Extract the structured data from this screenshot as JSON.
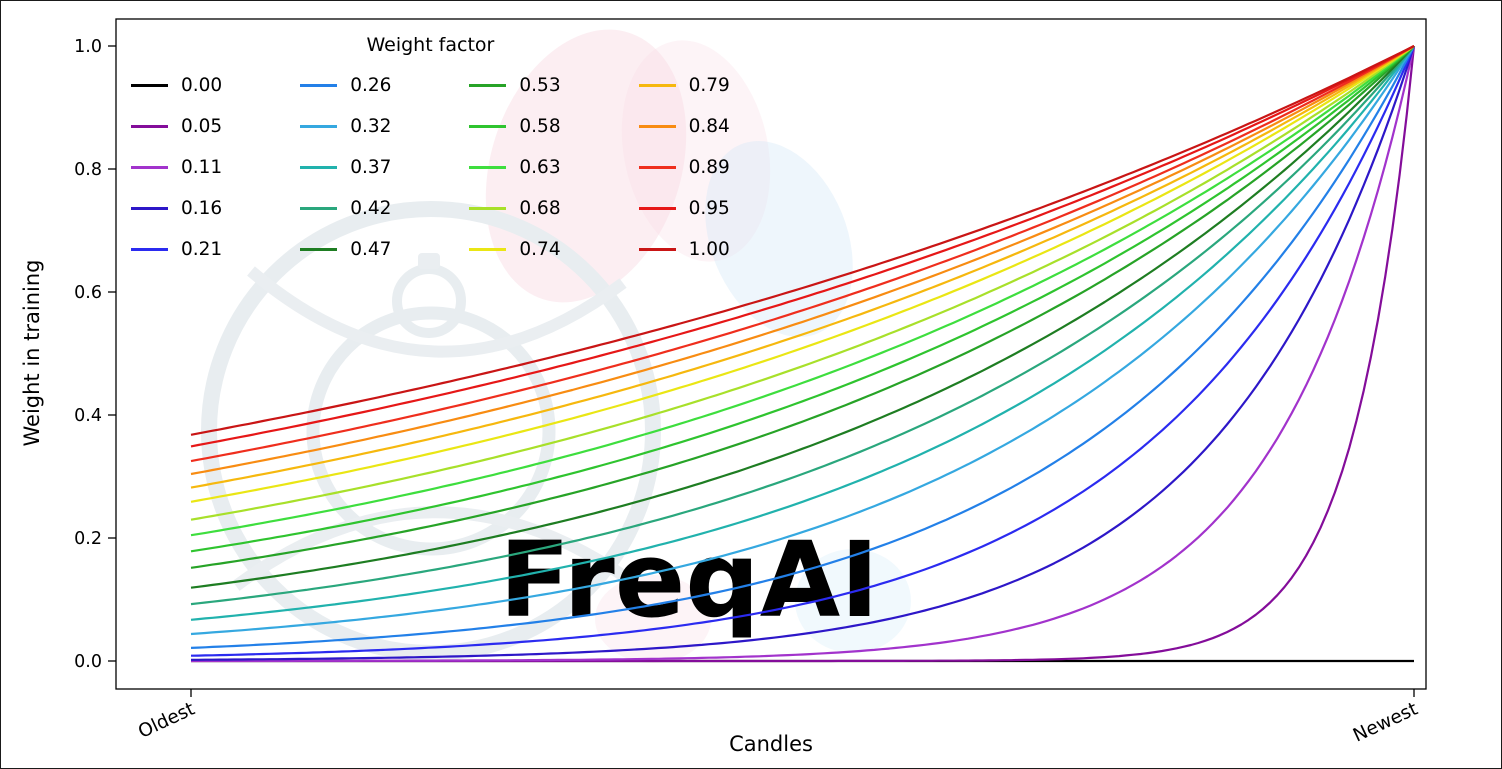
{
  "figure": {
    "watermark_text": "FreqAI",
    "background_color": "#ffffff"
  },
  "chart_data": {
    "type": "line",
    "title": "",
    "xlabel": "Candles",
    "ylabel": "Weight in training",
    "x_axis": {
      "tick_labels": [
        "Oldest",
        "Newest"
      ],
      "tick_positions": [
        0,
        1
      ],
      "tick_rotation_deg": 25,
      "range": [
        0,
        1
      ]
    },
    "y_axis": {
      "tick_labels": [
        "0.0",
        "0.2",
        "0.4",
        "0.6",
        "0.8",
        "1.0"
      ],
      "tick_values": [
        0,
        0.2,
        0.4,
        0.6,
        0.8,
        1.0
      ],
      "range": [
        -0.046,
        1.044
      ]
    },
    "legend": {
      "title": "Weight factor",
      "position": "upper left",
      "columns": 4,
      "column_major": true,
      "frame": false
    },
    "curve_formula": "weight = exp(-(1 - x) / weight_factor), x from 0 (Oldest) to 1 (Newest)",
    "sample_x": [
      0,
      0.25,
      0.5,
      0.75,
      1
    ],
    "series": [
      {
        "label": "0.00",
        "factor": 0.0,
        "color": "#000000",
        "values": [
          0,
          0,
          0,
          0,
          0
        ]
      },
      {
        "label": "0.05",
        "factor": 0.05,
        "color": "#840d9a",
        "values": [
          0,
          0,
          0,
          0.0067,
          1
        ]
      },
      {
        "label": "0.11",
        "factor": 0.11,
        "color": "#a233cc",
        "values": [
          0.0001,
          0.0011,
          0.0106,
          0.1031,
          1
        ]
      },
      {
        "label": "0.16",
        "factor": 0.16,
        "color": "#2d17c8",
        "values": [
          0.0019,
          0.0092,
          0.0439,
          0.2096,
          1
        ]
      },
      {
        "label": "0.21",
        "factor": 0.21,
        "color": "#2b2bf0",
        "values": [
          0.0086,
          0.0281,
          0.0924,
          0.3041,
          1
        ]
      },
      {
        "label": "0.26",
        "factor": 0.26,
        "color": "#2380e8",
        "values": [
          0.0214,
          0.0559,
          0.1461,
          0.3823,
          1
        ]
      },
      {
        "label": "0.32",
        "factor": 0.32,
        "color": "#35a8e0",
        "values": [
          0.0439,
          0.096,
          0.2096,
          0.4578,
          1
        ]
      },
      {
        "label": "0.37",
        "factor": 0.37,
        "color": "#21b2ad",
        "values": [
          0.067,
          0.1317,
          0.2589,
          0.5088,
          1
        ]
      },
      {
        "label": "0.42",
        "factor": 0.42,
        "color": "#2aa77d",
        "values": [
          0.0924,
          0.1677,
          0.3041,
          0.5514,
          1
        ]
      },
      {
        "label": "0.47",
        "factor": 0.47,
        "color": "#1e7d22",
        "values": [
          0.1191,
          0.2027,
          0.3452,
          0.5875,
          1
        ]
      },
      {
        "label": "0.53",
        "factor": 0.53,
        "color": "#27a327",
        "values": [
          0.1516,
          0.243,
          0.3893,
          0.624,
          1
        ]
      },
      {
        "label": "0.58",
        "factor": 0.58,
        "color": "#2fc42f",
        "values": [
          0.1784,
          0.2744,
          0.4223,
          0.6499,
          1
        ]
      },
      {
        "label": "0.63",
        "factor": 0.63,
        "color": "#3ede3e",
        "values": [
          0.2045,
          0.3041,
          0.4522,
          0.6725,
          1
        ]
      },
      {
        "label": "0.68",
        "factor": 0.68,
        "color": "#a8e02a",
        "values": [
          0.2298,
          0.3319,
          0.4794,
          0.6924,
          1
        ]
      },
      {
        "label": "0.74",
        "factor": 0.74,
        "color": "#eae614",
        "values": [
          0.2589,
          0.3629,
          0.5088,
          0.7133,
          1
        ]
      },
      {
        "label": "0.79",
        "factor": 0.79,
        "color": "#f6b80e",
        "values": [
          0.282,
          0.387,
          0.5311,
          0.7287,
          1
        ]
      },
      {
        "label": "0.84",
        "factor": 0.84,
        "color": "#f88c12",
        "values": [
          0.3041,
          0.4094,
          0.5514,
          0.7426,
          1
        ]
      },
      {
        "label": "0.89",
        "factor": 0.89,
        "color": "#ef2e1d",
        "values": [
          0.3251,
          0.4305,
          0.5702,
          0.7551,
          1
        ]
      },
      {
        "label": "0.95",
        "factor": 0.95,
        "color": "#e61717",
        "values": [
          0.349,
          0.4541,
          0.5908,
          0.7686,
          1
        ]
      },
      {
        "label": "1.00",
        "factor": 1.0,
        "color": "#c91515",
        "values": [
          0.3679,
          0.4724,
          0.6065,
          0.7788,
          1
        ]
      }
    ]
  }
}
